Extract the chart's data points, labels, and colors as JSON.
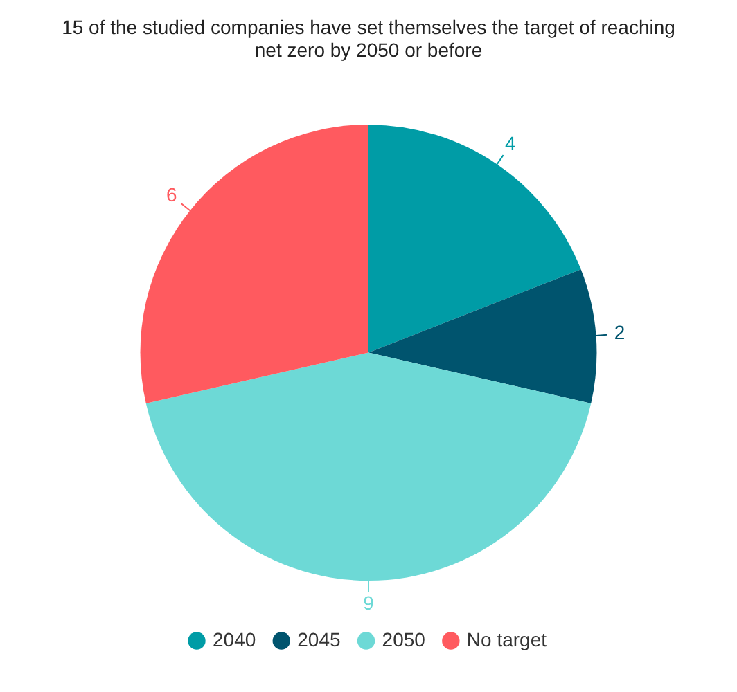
{
  "chart_data": {
    "type": "pie",
    "title": "15 of the studied companies have set themselves the target of reaching net zero by 2050 or before",
    "categories": [
      "2040",
      "2045",
      "2050",
      "No target"
    ],
    "values": [
      4,
      2,
      9,
      6
    ],
    "colors": [
      "#009ca6",
      "#00546e",
      "#6dd9d6",
      "#ff5a5f"
    ],
    "data_labels": true,
    "legend": "bottom"
  }
}
